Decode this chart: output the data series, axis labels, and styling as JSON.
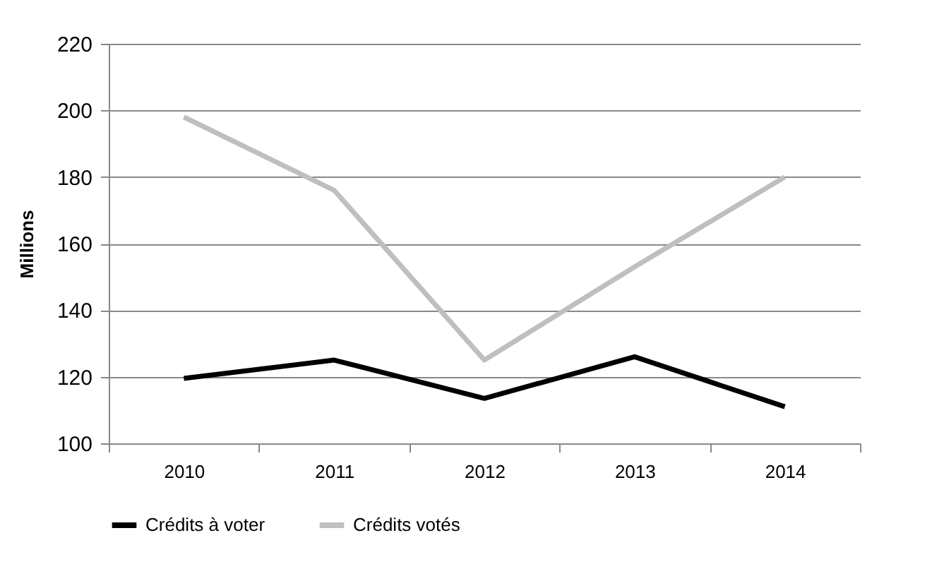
{
  "chart_data": {
    "type": "line",
    "ylabel": "Millions",
    "categories": [
      "2010",
      "2011",
      "2012",
      "2013",
      "2014"
    ],
    "series": [
      {
        "name": "Crédits à voter",
        "color": "#000000",
        "values": [
          119.5,
          125,
          113.5,
          126,
          111
        ]
      },
      {
        "name": "Crédits votés",
        "color": "#bfbfbf",
        "values": [
          198,
          176,
          125,
          153,
          180
        ]
      }
    ],
    "ylim": [
      100,
      220
    ],
    "yticks": [
      100,
      120,
      140,
      160,
      180,
      200,
      220
    ],
    "grid": "y",
    "legend": "bottom",
    "marker": "none",
    "line_style": "solid"
  }
}
